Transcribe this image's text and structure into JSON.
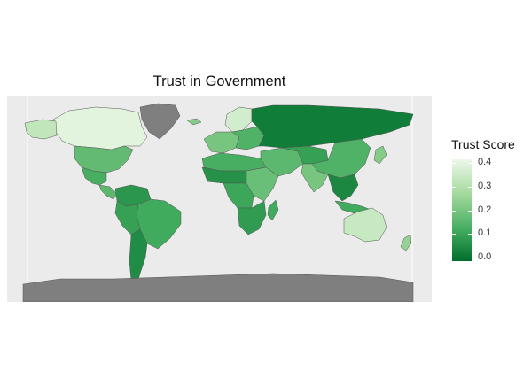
{
  "title": "Trust in Government",
  "legend": {
    "title": "Trust Score",
    "ticks": [
      "0.4",
      "0.3",
      "0.2",
      "0.1",
      "0.0"
    ],
    "min": 0.0,
    "max": 0.4,
    "colors": {
      "low": "#006d2c",
      "mid_low": "#41ab5d",
      "mid_high": "#a1d99b",
      "high": "#edf8e9"
    }
  },
  "map": {
    "missing_color": "#7f7f7f",
    "border_color": "#555555",
    "regions": [
      {
        "name": "Greenland",
        "value": null
      },
      {
        "name": "Canada",
        "value": 0.38
      },
      {
        "name": "Alaska",
        "value": 0.32
      },
      {
        "name": "United States",
        "value": 0.17
      },
      {
        "name": "Mexico",
        "value": 0.13
      },
      {
        "name": "Central America",
        "value": 0.16
      },
      {
        "name": "Colombia / Venezuela",
        "value": 0.08
      },
      {
        "name": "Brazil",
        "value": 0.12
      },
      {
        "name": "Peru / Bolivia",
        "value": 0.1
      },
      {
        "name": "Argentina / Chile",
        "value": 0.06
      },
      {
        "name": "Iceland",
        "value": 0.22
      },
      {
        "name": "Northern Europe",
        "value": 0.35
      },
      {
        "name": "Western Europe",
        "value": 0.2
      },
      {
        "name": "Eastern Europe",
        "value": 0.14
      },
      {
        "name": "Russia",
        "value": 0.03
      },
      {
        "name": "North Africa",
        "value": 0.13
      },
      {
        "name": "Sahel",
        "value": 0.07
      },
      {
        "name": "Central Africa",
        "value": 0.11
      },
      {
        "name": "East Africa",
        "value": 0.18
      },
      {
        "name": "Southern Africa",
        "value": 0.09
      },
      {
        "name": "Madagascar",
        "value": 0.12
      },
      {
        "name": "Middle East",
        "value": 0.16
      },
      {
        "name": "Central Asia",
        "value": 0.1
      },
      {
        "name": "China",
        "value": 0.14
      },
      {
        "name": "India",
        "value": 0.2
      },
      {
        "name": "Southeast Asia",
        "value": 0.05
      },
      {
        "name": "Indonesia",
        "value": 0.12
      },
      {
        "name": "Japan",
        "value": 0.22
      },
      {
        "name": "Australia",
        "value": 0.33
      },
      {
        "name": "New Zealand",
        "value": 0.24
      },
      {
        "name": "Antarctica",
        "value": null
      }
    ]
  }
}
